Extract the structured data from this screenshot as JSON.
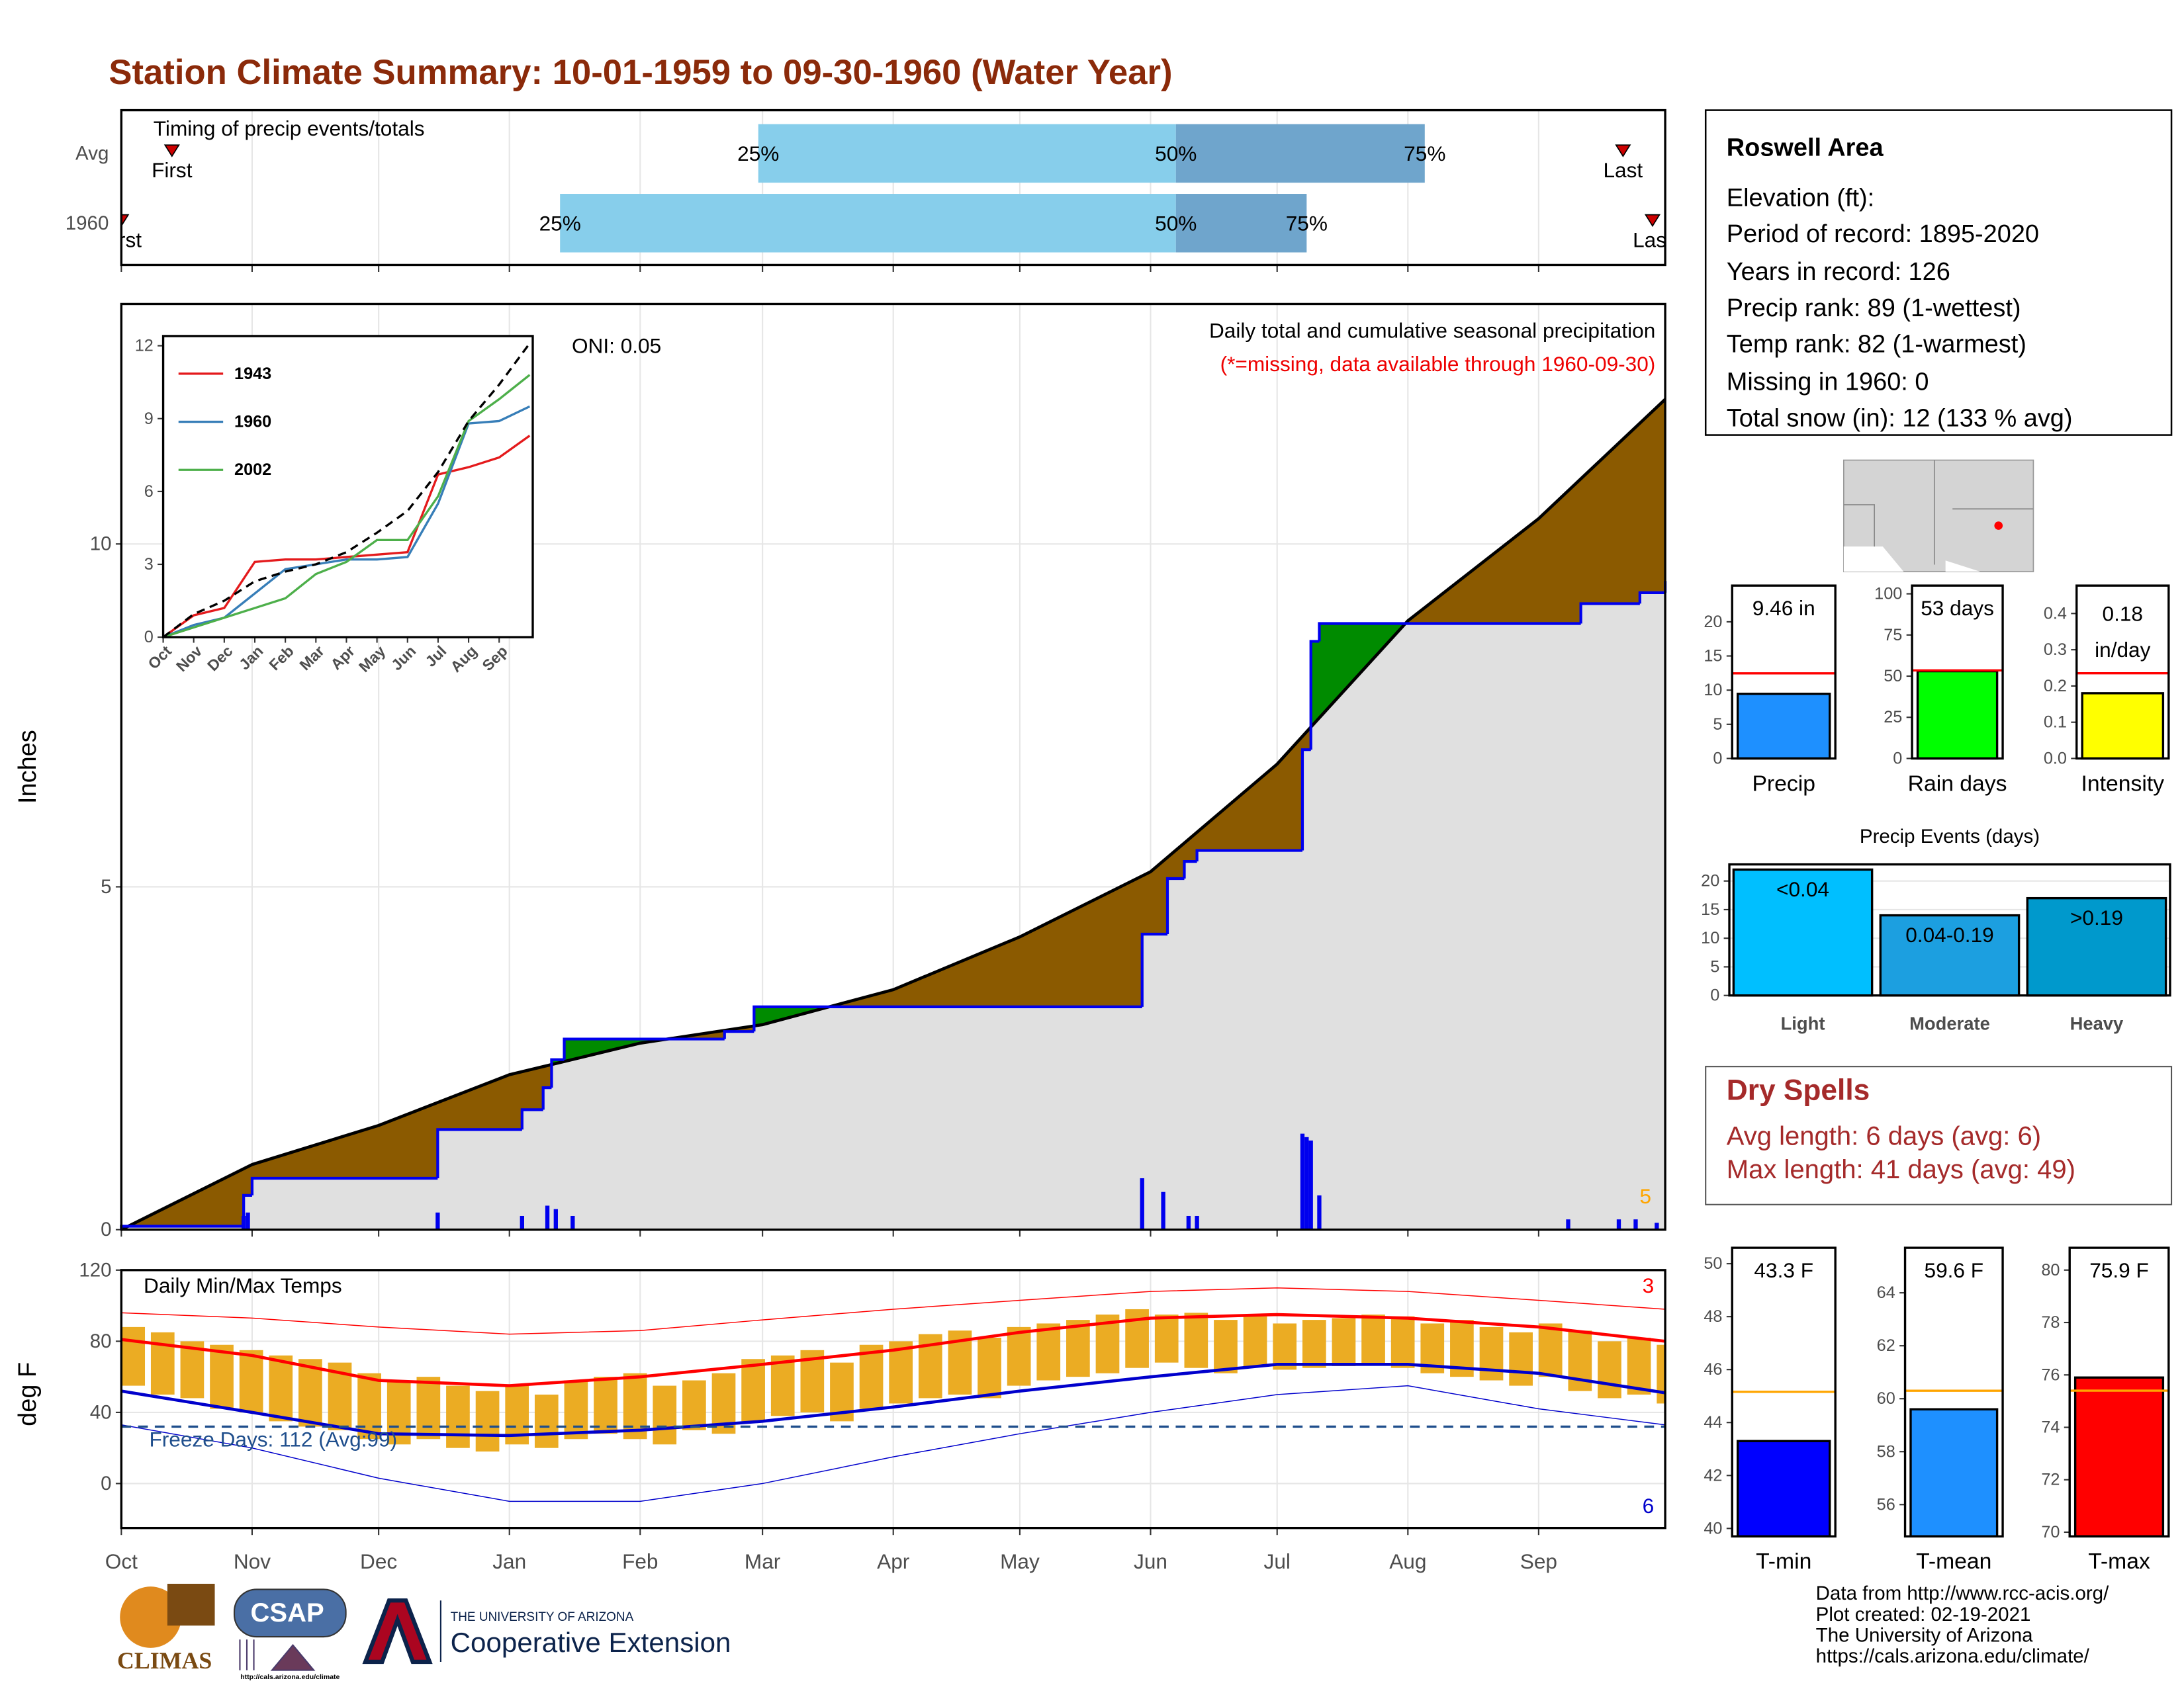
{
  "title": "Station Climate Summary: 10-01-1959 to 09-30-1960 (Water Year)",
  "chart_data": [
    {
      "type": "timing",
      "title": "Timing of precip events/totals",
      "categories": [
        "Avg",
        "1960"
      ],
      "series": [
        {
          "name": "First",
          "values": [
            12,
            0
          ]
        },
        {
          "name": "25%",
          "values": [
            151,
            104
          ]
        },
        {
          "name": "50%",
          "values": [
            250,
            250
          ]
        },
        {
          "name": "75%",
          "values": [
            309,
            281
          ]
        },
        {
          "name": "Last",
          "values": [
            356,
            363
          ]
        }
      ],
      "colors": [
        "#87ceeb",
        "#6fa5cc"
      ],
      "marker_color": "#cc0000",
      "grid": true,
      "xlim": [
        0,
        366
      ],
      "xticks": [
        0,
        31,
        61,
        92,
        123,
        152,
        183,
        213,
        244,
        274,
        305,
        336
      ]
    },
    {
      "type": "precip",
      "ylabel": "Inches",
      "oni": "ONI: 0.05",
      "subtitle": "Daily total and cumulative seasonal precipitation",
      "note": "(*=missing, data available through 1960-09-30)",
      "count": 5,
      "grid": true,
      "xlim": [
        0,
        366
      ],
      "xticks": [
        0,
        31,
        61,
        92,
        123,
        152,
        183,
        213,
        244,
        274,
        305,
        336
      ],
      "ylim": [
        0,
        13.5
      ],
      "yticks": [
        0,
        5,
        10
      ],
      "cumulative": {
        "color": "#0000ee",
        "x": [
          0,
          29,
          31,
          75,
          95,
          100,
          102,
          105,
          143,
          150,
          242,
          248,
          252,
          255,
          280,
          282,
          284,
          346,
          360,
          366
        ],
        "values": [
          0.05,
          0.5,
          0.75,
          1.46,
          1.75,
          2.07,
          2.48,
          2.78,
          2.89,
          3.25,
          4.31,
          5.12,
          5.37,
          5.53,
          7.0,
          8.58,
          8.84,
          9.13,
          9.29,
          9.46
        ]
      },
      "average": {
        "color": "#000000",
        "x": [
          0,
          31,
          61,
          92,
          123,
          152,
          183,
          213,
          244,
          274,
          305,
          336,
          366
        ],
        "values": [
          0,
          0.95,
          1.52,
          2.26,
          2.72,
          2.99,
          3.5,
          4.27,
          5.22,
          6.79,
          8.88,
          10.37,
          12.11
        ]
      },
      "daily": {
        "color": "#0000ee",
        "x": [
          29,
          30,
          75,
          95,
          101,
          103,
          107,
          242,
          247,
          253,
          255,
          280,
          281,
          282,
          284,
          343,
          355,
          359,
          364
        ],
        "values": [
          0.2,
          0.25,
          0.25,
          0.2,
          0.35,
          0.3,
          0.2,
          0.75,
          0.55,
          0.2,
          0.2,
          1.4,
          1.35,
          1.3,
          0.5,
          0.15,
          0.15,
          0.15,
          0.1
        ]
      },
      "colors": {
        "deficit": "#8b5a00",
        "surplus": "#008b00",
        "base": "#e0e0e0",
        "note": "#ee0000",
        "count": "#ffa500"
      }
    },
    {
      "type": "line",
      "xlim": [
        0,
        12.1
      ],
      "ylim": [
        0,
        12.4
      ],
      "yticks": [
        0,
        3,
        6,
        9,
        12
      ],
      "x": [
        0,
        1,
        2,
        3,
        4,
        5,
        6,
        7,
        8,
        9,
        10,
        11,
        12
      ],
      "xticks": [
        {
          "value": 0,
          "label": "Oct"
        },
        {
          "value": 1,
          "label": "Nov"
        },
        {
          "value": 2,
          "label": "Dec"
        },
        {
          "value": 3,
          "label": "Jan"
        },
        {
          "value": 4,
          "label": "Feb"
        },
        {
          "value": 5,
          "label": "Mar"
        },
        {
          "value": 6,
          "label": "Apr"
        },
        {
          "value": 7,
          "label": "May"
        },
        {
          "value": 8,
          "label": "Jun"
        },
        {
          "value": 9,
          "label": "Jul"
        },
        {
          "value": 10,
          "label": "Aug"
        },
        {
          "value": 11,
          "label": "Sep"
        }
      ],
      "series": [
        {
          "name": "1943",
          "color": "#e41a1c",
          "values": [
            0,
            0.9,
            1.2,
            3.1,
            3.2,
            3.2,
            3.3,
            3.4,
            3.5,
            6.7,
            7.0,
            7.4,
            8.3
          ]
        },
        {
          "name": "1960",
          "color": "#377eb8",
          "values": [
            0,
            0.5,
            0.8,
            1.8,
            2.8,
            3.0,
            3.2,
            3.2,
            3.3,
            5.5,
            8.8,
            8.9,
            9.5
          ]
        },
        {
          "name": "2002",
          "color": "#4daf4a",
          "values": [
            0,
            0.4,
            0.8,
            1.2,
            1.6,
            2.6,
            3.1,
            4.0,
            4.0,
            5.8,
            8.9,
            9.8,
            10.8
          ]
        }
      ],
      "average": {
        "color": "#000000",
        "values": [
          0,
          0.95,
          1.5,
          2.3,
          2.7,
          3.0,
          3.5,
          4.3,
          5.2,
          6.8,
          8.9,
          10.4,
          12.1
        ]
      }
    },
    {
      "type": "temperature",
      "title": "Daily Min/Max Temps",
      "ylabel": "deg F",
      "freeze_label": "Freeze Days: 112 (Avg:99)",
      "freeze": 32,
      "record_high_count": 3,
      "record_low_count": 6,
      "grid": true,
      "xlim": [
        0,
        366
      ],
      "ylim": [
        -25,
        120
      ],
      "yticks": [
        0,
        40,
        80,
        120
      ],
      "xticks": [
        {
          "value": 0,
          "label": "Oct"
        },
        {
          "value": 31,
          "label": "Nov"
        },
        {
          "value": 61,
          "label": "Dec"
        },
        {
          "value": 92,
          "label": "Jan"
        },
        {
          "value": 123,
          "label": "Feb"
        },
        {
          "value": 152,
          "label": "Mar"
        },
        {
          "value": 183,
          "label": "Apr"
        },
        {
          "value": 213,
          "label": "May"
        },
        {
          "value": 244,
          "label": "Jun"
        },
        {
          "value": 274,
          "label": "Jul"
        },
        {
          "value": 305,
          "label": "Aug"
        },
        {
          "value": 336,
          "label": "Sep"
        }
      ],
      "daily": {
        "color": "#ebac23",
        "x": [
          0,
          7,
          14,
          21,
          28,
          35,
          42,
          49,
          56,
          63,
          70,
          77,
          84,
          91,
          98,
          105,
          112,
          119,
          126,
          133,
          140,
          147,
          154,
          161,
          168,
          175,
          182,
          189,
          196,
          203,
          210,
          217,
          224,
          231,
          238,
          245,
          252,
          259,
          266,
          273,
          280,
          287,
          294,
          301,
          308,
          315,
          322,
          329,
          336,
          343,
          350,
          357,
          364
        ],
        "tmax": [
          88,
          85,
          80,
          78,
          75,
          72,
          70,
          68,
          62,
          58,
          60,
          55,
          52,
          55,
          50,
          58,
          60,
          62,
          55,
          58,
          62,
          70,
          72,
          75,
          68,
          78,
          80,
          84,
          86,
          82,
          88,
          90,
          92,
          95,
          98,
          95,
          96,
          92,
          94,
          90,
          92,
          93,
          95,
          94,
          90,
          92,
          88,
          85,
          90,
          86,
          80,
          82,
          78
        ],
        "tmin": [
          55,
          50,
          48,
          42,
          40,
          35,
          32,
          30,
          25,
          22,
          25,
          20,
          18,
          22,
          20,
          25,
          28,
          25,
          22,
          30,
          28,
          35,
          38,
          40,
          35,
          42,
          45,
          48,
          50,
          48,
          55,
          58,
          60,
          62,
          65,
          68,
          65,
          62,
          66,
          64,
          65,
          66,
          67,
          65,
          62,
          60,
          58,
          55,
          60,
          52,
          48,
          50,
          45
        ]
      },
      "normal": {
        "x": [
          0,
          31,
          61,
          92,
          123,
          152,
          183,
          213,
          244,
          274,
          305,
          336,
          366
        ],
        "tmax": [
          81,
          72,
          58,
          55,
          60,
          67,
          75,
          85,
          93,
          95,
          93,
          88,
          80
        ],
        "tmin": [
          52,
          40,
          28,
          27,
          30,
          35,
          43,
          52,
          60,
          67,
          67,
          62,
          51
        ]
      },
      "record": {
        "x": [
          0,
          31,
          61,
          92,
          123,
          152,
          183,
          213,
          244,
          274,
          305,
          336,
          366
        ],
        "tmax": [
          96,
          93,
          88,
          84,
          86,
          92,
          98,
          103,
          108,
          110,
          108,
          103,
          98
        ],
        "tmin": [
          33,
          20,
          3,
          -10,
          -10,
          0,
          15,
          28,
          40,
          50,
          55,
          42,
          33
        ]
      },
      "colors": {
        "high": "#ff0000",
        "low": "#0000cc",
        "freeze": "#1f4e8c"
      }
    },
    {
      "type": "bar",
      "categories": [
        "Precip"
      ],
      "values": [
        9.46
      ],
      "value_labels": [
        "9.46 in"
      ],
      "color": "#1e90ff",
      "reference": 12.45,
      "reference_color": "#ff0000",
      "ylim": [
        0,
        25.3
      ],
      "yticks": [
        0,
        5,
        10,
        15,
        20
      ]
    },
    {
      "type": "bar",
      "categories": [
        "Rain days"
      ],
      "values": [
        53
      ],
      "value_labels": [
        "53 days"
      ],
      "color": "#00ff00",
      "reference": 53.5,
      "reference_color": "#ff0000",
      "ylim": [
        0,
        105
      ],
      "yticks": [
        0,
        25,
        50,
        75,
        100
      ]
    },
    {
      "type": "bar",
      "categories": [
        "Intensity"
      ],
      "values": [
        0.18
      ],
      "value_labels": [
        "0.18"
      ],
      "unit": "in/day",
      "color": "#ffff00",
      "reference": 0.235,
      "reference_color": "#ff0000",
      "ylim": [
        0,
        0.477
      ],
      "yticks": [
        {
          "value": 0,
          "label": "0.0"
        },
        0.1,
        0.2,
        0.3,
        0.4
      ]
    },
    {
      "type": "bar",
      "title": "Precip Events (days)",
      "categories": [
        "Light",
        "Moderate",
        "Heavy"
      ],
      "values": [
        22,
        14,
        17
      ],
      "value_labels": [
        "<0.04",
        "0.04-0.19",
        ">0.19"
      ],
      "colors": [
        "#00bfff",
        "#1c9fe0",
        "#0099cc"
      ],
      "grid": true,
      "ylim": [
        0,
        22.9
      ],
      "yticks": [
        0,
        5,
        10,
        15,
        20
      ]
    },
    {
      "type": "bar",
      "categories": [
        "T-min"
      ],
      "values": [
        43.3
      ],
      "value_labels": [
        "43.3 F"
      ],
      "color": "#0000ff",
      "reference": 45.16,
      "reference_color": "#ffa500",
      "ylim": [
        39.7,
        50.6
      ],
      "yticks": [
        40,
        42,
        44,
        46,
        48,
        50
      ]
    },
    {
      "type": "bar",
      "categories": [
        "T-mean"
      ],
      "values": [
        59.6
      ],
      "value_labels": [
        "59.6 F"
      ],
      "color": "#1e90ff",
      "reference": 60.3,
      "reference_color": "#ffa500",
      "ylim": [
        54.8,
        65.7
      ],
      "yticks": [
        56,
        58,
        60,
        62,
        64
      ]
    },
    {
      "type": "bar",
      "categories": [
        "T-max"
      ],
      "values": [
        75.9
      ],
      "value_labels": [
        "75.9 F"
      ],
      "color": "#ff0000",
      "reference": 75.4,
      "reference_color": "#ffa500",
      "ylim": [
        69.84,
        80.85
      ],
      "yticks": [
        70,
        72,
        74,
        76,
        78,
        80
      ]
    }
  ],
  "info": {
    "title": "Roswell Area",
    "lines": [
      "Elevation (ft):",
      "Period of record: 1895-2020",
      "Years in record: 126",
      "Precip rank: 89 (1-wettest)",
      "Temp rank: 82 (1-warmest)",
      "Missing in 1960: 0",
      "Total snow (in): 12 (133 % avg)"
    ]
  },
  "dry_spells": {
    "title": "Dry Spells",
    "lines": [
      "Avg length: 6 days (avg: 6)",
      "Max length: 41 days (avg: 49)"
    ]
  },
  "credits": [
    "Data from http://www.rcc-acis.org/",
    "Plot created: 02-19-2021",
    "The University of Arizona",
    "https://cals.arizona.edu/climate/"
  ],
  "logos": {
    "climas": "CLIMAS",
    "csap": "CSAP",
    "csap_url": "http://cals.arizona.edu/climate",
    "university": "THE UNIVERSITY OF ARIZONA",
    "extension": "Cooperative Extension"
  }
}
